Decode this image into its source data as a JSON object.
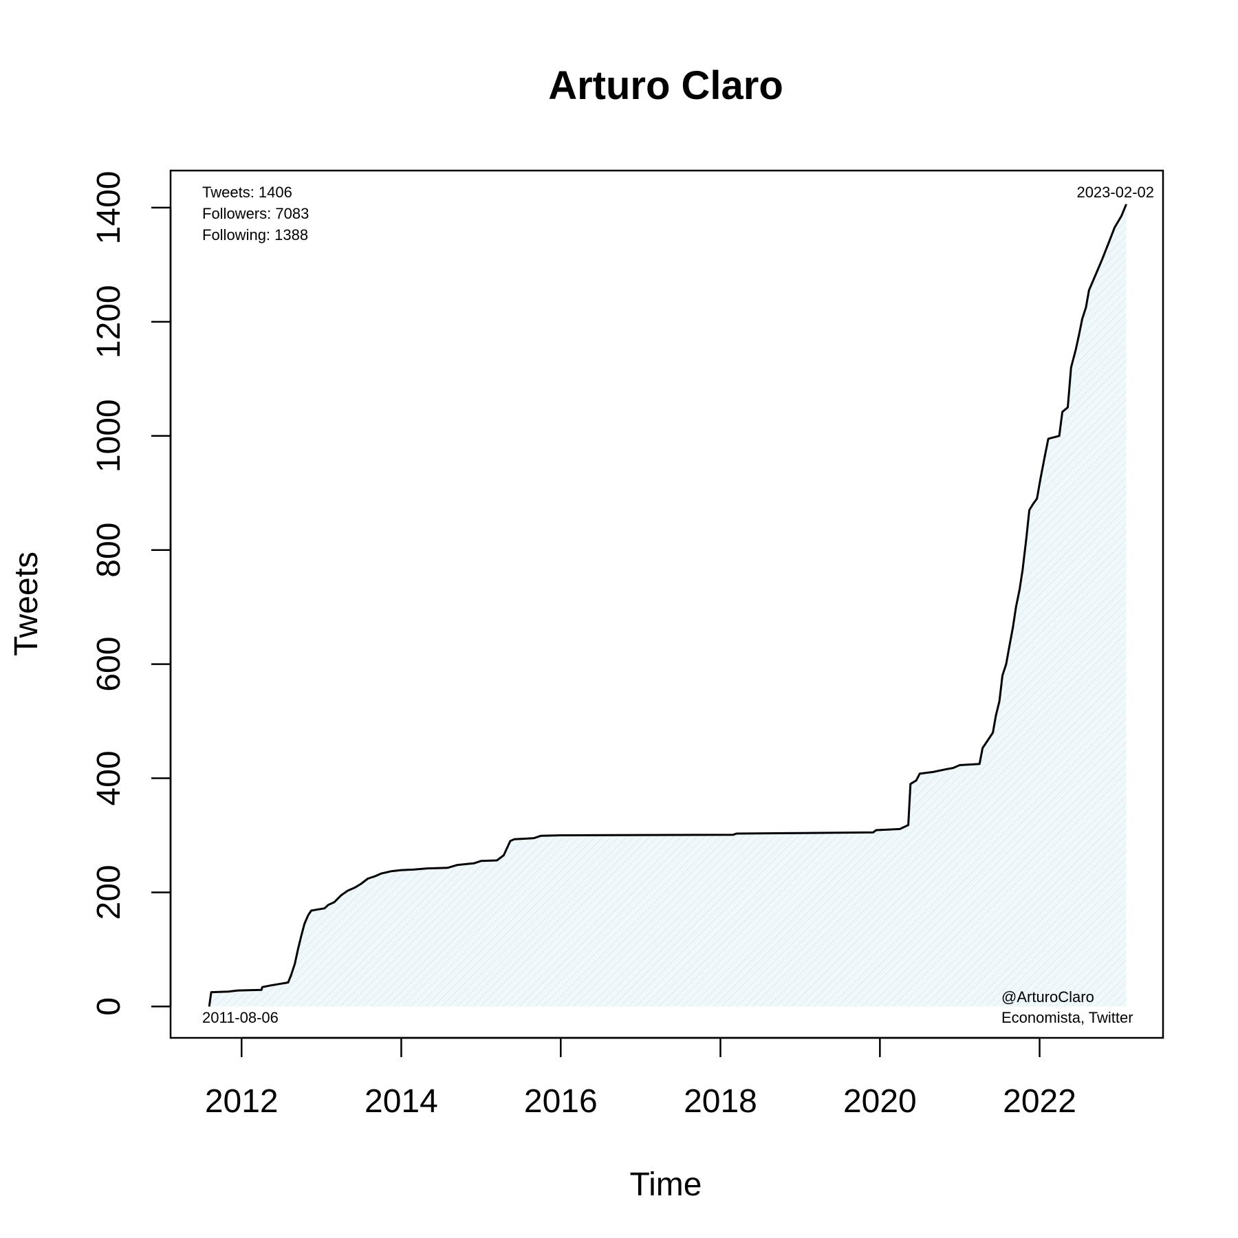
{
  "chart_data": {
    "type": "area",
    "title": "Arturo Claro",
    "xlabel": "Time",
    "ylabel": "Tweets",
    "xlim": [
      "2011-02-10",
      "2023-07-20"
    ],
    "ylim": [
      -55,
      1465
    ],
    "x_ticks": [
      "2012",
      "2014",
      "2016",
      "2018",
      "2020",
      "2022"
    ],
    "y_ticks": [
      "0",
      "200",
      "400",
      "600",
      "800",
      "1000",
      "1200",
      "1400"
    ],
    "grid": false,
    "fill_color": "#e6f3f7",
    "line_color": "#000000",
    "series": [
      {
        "points": [
          [
            "2011-08-06",
            0
          ],
          [
            "2011-08-15",
            25
          ],
          [
            "2011-11-01",
            26
          ],
          [
            "2011-12-15",
            28
          ],
          [
            "2012-04-01",
            29
          ],
          [
            "2012-04-05",
            34
          ],
          [
            "2012-05-15",
            37
          ],
          [
            "2012-07-01",
            40
          ],
          [
            "2012-08-01",
            42
          ],
          [
            "2012-08-15",
            55
          ],
          [
            "2012-09-01",
            75
          ],
          [
            "2012-09-15",
            100
          ],
          [
            "2012-10-01",
            125
          ],
          [
            "2012-10-15",
            145
          ],
          [
            "2012-11-01",
            160
          ],
          [
            "2012-11-15",
            168
          ],
          [
            "2012-12-15",
            170
          ],
          [
            "2013-01-15",
            172
          ],
          [
            "2013-02-01",
            178
          ],
          [
            "2013-03-01",
            183
          ],
          [
            "2013-04-01",
            195
          ],
          [
            "2013-05-01",
            203
          ],
          [
            "2013-06-01",
            208
          ],
          [
            "2013-07-01",
            215
          ],
          [
            "2013-08-01",
            224
          ],
          [
            "2013-09-01",
            228
          ],
          [
            "2013-10-01",
            233
          ],
          [
            "2013-11-15",
            237
          ],
          [
            "2014-01-01",
            239
          ],
          [
            "2014-03-01",
            240
          ],
          [
            "2014-05-01",
            242
          ],
          [
            "2014-08-01",
            243
          ],
          [
            "2014-09-15",
            248
          ],
          [
            "2014-12-01",
            251
          ],
          [
            "2015-01-01",
            255
          ],
          [
            "2015-03-15",
            256
          ],
          [
            "2015-04-15",
            265
          ],
          [
            "2015-05-15",
            290
          ],
          [
            "2015-06-01",
            293
          ],
          [
            "2015-07-15",
            294
          ],
          [
            "2015-09-01",
            295
          ],
          [
            "2015-10-01",
            299
          ],
          [
            "2016-01-01",
            300
          ],
          [
            "2018-03-01",
            301
          ],
          [
            "2018-03-15",
            303
          ],
          [
            "2019-01-01",
            304
          ],
          [
            "2019-12-01",
            305
          ],
          [
            "2019-12-15",
            309
          ],
          [
            "2020-04-01",
            311
          ],
          [
            "2020-05-10",
            318
          ],
          [
            "2020-05-20",
            390
          ],
          [
            "2020-06-15",
            396
          ],
          [
            "2020-07-01",
            408
          ],
          [
            "2020-09-01",
            411
          ],
          [
            "2020-11-01",
            416
          ],
          [
            "2020-12-01",
            418
          ],
          [
            "2021-01-01",
            423
          ],
          [
            "2021-04-01",
            425
          ],
          [
            "2021-04-15",
            453
          ],
          [
            "2021-05-01",
            462
          ],
          [
            "2021-06-01",
            480
          ],
          [
            "2021-06-15",
            510
          ],
          [
            "2021-07-01",
            535
          ],
          [
            "2021-07-15",
            580
          ],
          [
            "2021-08-01",
            600
          ],
          [
            "2021-08-15",
            630
          ],
          [
            "2021-09-01",
            665
          ],
          [
            "2021-09-15",
            700
          ],
          [
            "2021-10-01",
            730
          ],
          [
            "2021-10-15",
            765
          ],
          [
            "2021-11-01",
            820
          ],
          [
            "2021-11-15",
            870
          ],
          [
            "2021-12-01",
            880
          ],
          [
            "2021-12-20",
            890
          ],
          [
            "2022-01-05",
            925
          ],
          [
            "2022-01-25",
            965
          ],
          [
            "2022-02-10",
            995
          ],
          [
            "2022-03-01",
            997
          ],
          [
            "2022-04-01",
            1000
          ],
          [
            "2022-04-15",
            1042
          ],
          [
            "2022-05-10",
            1050
          ],
          [
            "2022-05-25",
            1120
          ],
          [
            "2022-06-15",
            1150
          ],
          [
            "2022-07-01",
            1178
          ],
          [
            "2022-07-15",
            1205
          ],
          [
            "2022-08-01",
            1225
          ],
          [
            "2022-08-15",
            1255
          ],
          [
            "2022-09-15",
            1283
          ],
          [
            "2022-10-15",
            1310
          ],
          [
            "2022-11-15",
            1340
          ],
          [
            "2022-12-10",
            1365
          ],
          [
            "2023-01-10",
            1385
          ],
          [
            "2023-02-02",
            1406
          ]
        ]
      }
    ]
  },
  "annotations": {
    "stats": [
      "Tweets: 1406",
      "Followers: 7083",
      "Following: 1388"
    ],
    "start_date": "2011-08-06",
    "end_date": "2023-02-02",
    "credit": [
      "@ArturoClaro",
      "Economista, Twitter"
    ]
  }
}
